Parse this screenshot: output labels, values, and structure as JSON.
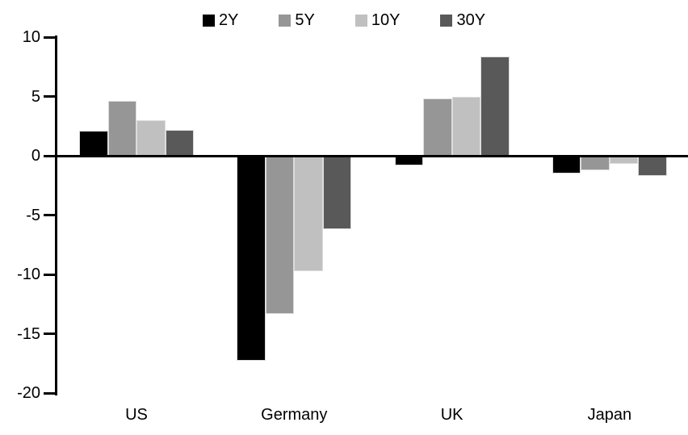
{
  "chart_data": {
    "type": "bar",
    "title": "",
    "categories": [
      "US",
      "Germany",
      "UK",
      "Japan"
    ],
    "series": [
      {
        "name": "2Y",
        "color": "#000000",
        "values": [
          2.1,
          -17.3,
          -0.8,
          -1.5
        ]
      },
      {
        "name": "5Y",
        "color": "#969696",
        "values": [
          4.6,
          -13.3,
          4.8,
          -1.2
        ]
      },
      {
        "name": "10Y",
        "color": "#c0c0c0",
        "values": [
          3.0,
          -9.7,
          5.0,
          -0.7
        ]
      },
      {
        "name": "30Y",
        "color": "#595959",
        "values": [
          2.2,
          -6.2,
          8.4,
          -1.7
        ]
      }
    ],
    "ylim": [
      -20,
      10
    ],
    "yticks": [
      10,
      5,
      0,
      -5,
      -10,
      -15,
      -20
    ],
    "xlabel": "",
    "ylabel": "",
    "legend_position": "top",
    "grid": false,
    "axis_color": "#000000",
    "background_color": "#ffffff"
  }
}
